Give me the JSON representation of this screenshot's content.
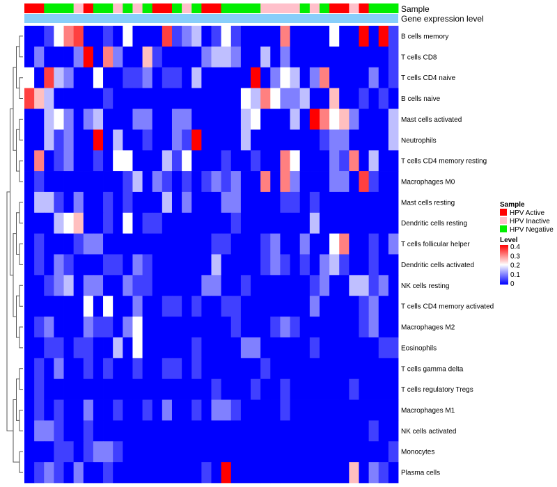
{
  "chart_data": {
    "type": "heatmap",
    "annotation_labels": {
      "sample": "Sample",
      "gene_expression": "Gene expression level"
    },
    "rows": [
      "B cells memory",
      "T cells CD8",
      "T cells CD4 naive",
      "B cells naive",
      "Mast cells activated",
      "Neutrophils",
      "T cells CD4 memory resting",
      "Macrophages M0",
      "Mast cells resting",
      "Dendritic cells resting",
      "T cells follicular helper",
      "Dendritic cells activated",
      "NK cells resting",
      "T cells CD4 memory activated",
      "Macrophages M2",
      "Eosinophils",
      "T cells gamma delta",
      "T cells regulatory  Tregs",
      "Macrophages M1",
      "NK cells activated",
      "Monocytes",
      "Plasma cells"
    ],
    "sample_groups": [
      "A",
      "A",
      "N",
      "N",
      "N",
      "I",
      "A",
      "N",
      "N",
      "I",
      "N",
      "I",
      "N",
      "A",
      "A",
      "N",
      "I",
      "N",
      "A",
      "A",
      "N",
      "N",
      "N",
      "N",
      "I",
      "I",
      "I",
      "I",
      "N",
      "I",
      "N",
      "A",
      "A",
      "I",
      "A",
      "N",
      "N",
      "N"
    ],
    "values": [
      [
        0,
        0,
        0.05,
        0.2,
        0.3,
        0.35,
        0,
        0,
        0.05,
        0,
        0.2,
        0,
        0,
        0,
        0.35,
        0.05,
        0.1,
        0.15,
        0,
        0.05,
        0.2,
        0.05,
        0,
        0,
        0,
        0,
        0.3,
        0,
        0,
        0,
        0,
        0.2,
        0,
        0,
        0.4,
        0,
        0.4,
        0.05
      ],
      [
        0,
        0.1,
        0,
        0,
        0,
        0.1,
        0.4,
        0,
        0.3,
        0.1,
        0,
        0,
        0.25,
        0.05,
        0,
        0,
        0,
        0,
        0.1,
        0.15,
        0.15,
        0.1,
        0,
        0,
        0.15,
        0,
        0.1,
        0,
        0,
        0,
        0,
        0,
        0,
        0,
        0,
        0,
        0,
        0.05
      ],
      [
        0.2,
        0,
        0.35,
        0.15,
        0.1,
        0,
        0,
        0.2,
        0,
        0,
        0.05,
        0.05,
        0.1,
        0,
        0.05,
        0.05,
        0,
        0.15,
        0,
        0,
        0,
        0,
        0,
        0.4,
        0,
        0.1,
        0.2,
        0.15,
        0,
        0.1,
        0.3,
        0,
        0,
        0,
        0,
        0.1,
        0,
        0.05
      ],
      [
        0.35,
        0.25,
        0.15,
        0,
        0,
        0,
        0,
        0,
        0.05,
        0,
        0,
        0,
        0,
        0,
        0,
        0,
        0,
        0,
        0,
        0,
        0,
        0,
        0.2,
        0.15,
        0.3,
        0.2,
        0.1,
        0.1,
        0.15,
        0,
        0,
        0.25,
        0,
        0,
        0.05,
        0,
        0.05,
        0
      ],
      [
        0,
        0,
        0.15,
        0.2,
        0.1,
        0,
        0.1,
        0.15,
        0,
        0,
        0,
        0.1,
        0.1,
        0,
        0,
        0.1,
        0.1,
        0,
        0,
        0,
        0,
        0,
        0.15,
        0.2,
        0,
        0,
        0,
        0.15,
        0,
        0.4,
        0.3,
        0.2,
        0.25,
        0.1,
        0,
        0,
        0,
        0.15
      ],
      [
        0,
        0,
        0.15,
        0.05,
        0.1,
        0,
        0,
        0.4,
        0,
        0.15,
        0,
        0,
        0.05,
        0,
        0,
        0.1,
        0.05,
        0.4,
        0,
        0,
        0,
        0,
        0.15,
        0,
        0,
        0,
        0,
        0,
        0,
        0,
        0.05,
        0.1,
        0.1,
        0,
        0,
        0,
        0,
        0.15
      ],
      [
        0,
        0.3,
        0,
        0.05,
        0.1,
        0,
        0,
        0.05,
        0,
        0.2,
        0.2,
        0,
        0,
        0,
        0.15,
        0.05,
        0.2,
        0,
        0,
        0,
        0.05,
        0,
        0,
        0.05,
        0,
        0,
        0.3,
        0.2,
        0,
        0,
        0,
        0.1,
        0.05,
        0.3,
        0,
        0.15,
        0,
        0
      ],
      [
        0,
        0.05,
        0,
        0,
        0,
        0,
        0,
        0,
        0,
        0,
        0.05,
        0.15,
        0,
        0.1,
        0.05,
        0,
        0.05,
        0,
        0.05,
        0.1,
        0.05,
        0.1,
        0,
        0,
        0.3,
        0,
        0.3,
        0.1,
        0,
        0,
        0,
        0.1,
        0.1,
        0,
        0.35,
        0.05,
        0,
        0
      ],
      [
        0,
        0.15,
        0.15,
        0.05,
        0,
        0.1,
        0,
        0,
        0.05,
        0,
        0.05,
        0,
        0,
        0,
        0.15,
        0,
        0.1,
        0,
        0,
        0,
        0.1,
        0.1,
        0,
        0,
        0,
        0,
        0.05,
        0.05,
        0,
        0.05,
        0,
        0,
        0,
        0,
        0,
        0,
        0,
        0
      ],
      [
        0,
        0,
        0,
        0.15,
        0.2,
        0.25,
        0,
        0,
        0.05,
        0,
        0.2,
        0,
        0.05,
        0.05,
        0,
        0,
        0,
        0,
        0,
        0,
        0,
        0.05,
        0,
        0,
        0,
        0,
        0,
        0,
        0,
        0.15,
        0,
        0,
        0,
        0,
        0,
        0,
        0,
        0
      ],
      [
        0,
        0.05,
        0,
        0,
        0,
        0.05,
        0.1,
        0.1,
        0,
        0,
        0,
        0,
        0,
        0,
        0,
        0,
        0,
        0,
        0,
        0.05,
        0.05,
        0,
        0,
        0,
        0.05,
        0.1,
        0,
        0,
        0.1,
        0,
        0,
        0.2,
        0.3,
        0,
        0,
        0.05,
        0,
        0.1
      ],
      [
        0,
        0.05,
        0,
        0.1,
        0.05,
        0,
        0,
        0,
        0.05,
        0.05,
        0,
        0.1,
        0.05,
        0,
        0,
        0,
        0,
        0,
        0,
        0.15,
        0,
        0,
        0,
        0,
        0.05,
        0.1,
        0.05,
        0,
        0.05,
        0,
        0.1,
        0.15,
        0.05,
        0,
        0,
        0.05,
        0,
        0
      ],
      [
        0,
        0,
        0.05,
        0.1,
        0.15,
        0,
        0.1,
        0.1,
        0,
        0,
        0.1,
        0.05,
        0.05,
        0,
        0,
        0,
        0,
        0,
        0.1,
        0.1,
        0,
        0,
        0.05,
        0,
        0,
        0,
        0,
        0,
        0,
        0.05,
        0.1,
        0,
        0,
        0.15,
        0.15,
        0.05,
        0.1,
        0
      ],
      [
        0,
        0,
        0,
        0,
        0,
        0,
        0.2,
        0,
        0.2,
        0,
        0,
        0.1,
        0,
        0,
        0.05,
        0.05,
        0,
        0.05,
        0,
        0,
        0.05,
        0.05,
        0,
        0,
        0,
        0,
        0,
        0,
        0,
        0.1,
        0,
        0,
        0,
        0,
        0.05,
        0.1,
        0,
        0
      ],
      [
        0,
        0.05,
        0.1,
        0,
        0,
        0,
        0.1,
        0.05,
        0.05,
        0,
        0.1,
        0.2,
        0,
        0,
        0,
        0,
        0,
        0,
        0,
        0,
        0,
        0.05,
        0,
        0,
        0,
        0.05,
        0.1,
        0.05,
        0,
        0,
        0,
        0,
        0,
        0,
        0.05,
        0.1,
        0,
        0
      ],
      [
        0,
        0,
        0.05,
        0.05,
        0,
        0.05,
        0.05,
        0,
        0,
        0.15,
        0,
        0.2,
        0,
        0,
        0,
        0,
        0,
        0.05,
        0,
        0,
        0,
        0,
        0.1,
        0.1,
        0,
        0,
        0,
        0,
        0,
        0.05,
        0,
        0,
        0,
        0,
        0,
        0,
        0.05,
        0.05
      ],
      [
        0,
        0.05,
        0,
        0.1,
        0,
        0,
        0.05,
        0,
        0.05,
        0,
        0,
        0.05,
        0,
        0,
        0.05,
        0.05,
        0,
        0.05,
        0,
        0,
        0,
        0,
        0,
        0,
        0.05,
        0,
        0,
        0,
        0,
        0,
        0,
        0,
        0,
        0,
        0,
        0,
        0,
        0
      ],
      [
        0,
        0.05,
        0,
        0,
        0,
        0,
        0,
        0,
        0,
        0,
        0,
        0,
        0,
        0,
        0,
        0,
        0,
        0,
        0,
        0.05,
        0,
        0,
        0,
        0.05,
        0,
        0,
        0.05,
        0,
        0,
        0,
        0,
        0,
        0,
        0.05,
        0,
        0,
        0,
        0
      ],
      [
        0,
        0.05,
        0,
        0.05,
        0,
        0,
        0.1,
        0,
        0,
        0.05,
        0,
        0,
        0.05,
        0,
        0.1,
        0,
        0,
        0.05,
        0,
        0.1,
        0.1,
        0.05,
        0,
        0,
        0,
        0,
        0.05,
        0,
        0,
        0,
        0,
        0,
        0,
        0,
        0,
        0,
        0,
        0
      ],
      [
        0,
        0.1,
        0.1,
        0.05,
        0,
        0,
        0.05,
        0,
        0,
        0,
        0,
        0,
        0,
        0,
        0,
        0,
        0,
        0,
        0,
        0,
        0,
        0,
        0,
        0,
        0,
        0,
        0,
        0,
        0,
        0,
        0,
        0,
        0,
        0,
        0,
        0.05,
        0,
        0
      ],
      [
        0,
        0,
        0,
        0.05,
        0.05,
        0,
        0.05,
        0.1,
        0.1,
        0.05,
        0,
        0,
        0,
        0,
        0,
        0,
        0,
        0,
        0,
        0,
        0,
        0,
        0,
        0,
        0,
        0,
        0,
        0,
        0,
        0,
        0,
        0,
        0,
        0,
        0,
        0,
        0,
        0.05
      ],
      [
        0,
        0.05,
        0.1,
        0.05,
        0,
        0.1,
        0,
        0,
        0.05,
        0,
        0,
        0,
        0,
        0,
        0,
        0,
        0,
        0,
        0.05,
        0,
        0.4,
        0,
        0,
        0,
        0,
        0,
        0,
        0,
        0,
        0,
        0,
        0,
        0,
        0.25,
        0,
        0.1,
        0.05,
        0
      ]
    ],
    "legend": {
      "sample_title": "Sample",
      "sample_entries": [
        {
          "key": "A",
          "label": "HPV Active",
          "color": "#ff0000"
        },
        {
          "key": "I",
          "label": "HPV Inactive",
          "color": "#ffc0cb"
        },
        {
          "key": "N",
          "label": "HPV Negative",
          "color": "#00ee00"
        }
      ],
      "gene_expression_color": "#87cefa",
      "level_title": "Level",
      "level_ticks": [
        "0.4",
        "0.3",
        "0.2",
        "0.1",
        "0"
      ],
      "level_range": [
        0,
        0.4
      ],
      "color_low": "#0000ff",
      "color_mid": "#ffffff",
      "color_high": "#ff0000"
    }
  }
}
